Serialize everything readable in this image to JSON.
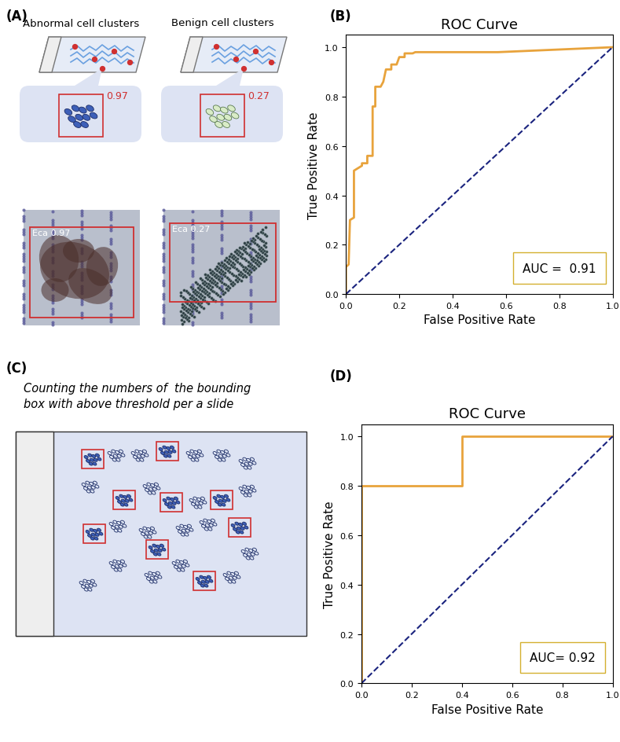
{
  "panel_labels": [
    "(A)",
    "(B)",
    "(C)",
    "(D)"
  ],
  "panel_A": {
    "left_title": "Abnormal cell clusters",
    "right_title": "Benign cell clusters",
    "left_score": 0.97,
    "right_score": 0.27,
    "photo_label": "Eca"
  },
  "panel_C": {
    "caption_lines": [
      "Counting the numbers of  the bounding",
      "box with above threshold per a slide"
    ]
  },
  "chart_data": [
    {
      "type": "line",
      "title": "ROC Curve",
      "x_label": "False Positive Rate",
      "y_label": "True Positive Rate",
      "series": [
        {
          "color": "#e8a33c",
          "line_style": "solid",
          "x": [
            0,
            0,
            0.01,
            0.015,
            0.03,
            0.03,
            0.06,
            0.06,
            0.08,
            0.08,
            0.1,
            0.1,
            0.11,
            0.11,
            0.13,
            0.14,
            0.15,
            0.17,
            0.17,
            0.19,
            0.2,
            0.22,
            0.22,
            0.25,
            0.26,
            0.57,
            1.0
          ],
          "values": [
            0,
            0.11,
            0.12,
            0.3,
            0.31,
            0.5,
            0.52,
            0.53,
            0.53,
            0.56,
            0.56,
            0.76,
            0.76,
            0.84,
            0.84,
            0.86,
            0.91,
            0.91,
            0.93,
            0.93,
            0.96,
            0.96,
            0.975,
            0.975,
            0.98,
            0.98,
            1.0
          ]
        },
        {
          "color": "#1a237e",
          "line_style": "dashed",
          "x": [
            0,
            1
          ],
          "values": [
            0,
            1
          ]
        }
      ],
      "xlim": [
        0,
        1
      ],
      "ylim": [
        0,
        1.05
      ],
      "xticks": [
        {
          "value": 0,
          "label": "0.0"
        },
        {
          "value": 0.2,
          "label": "0.2"
        },
        {
          "value": 0.4,
          "label": "0.4"
        },
        {
          "value": 0.6,
          "label": "0.6"
        },
        {
          "value": 0.8,
          "label": "0.8"
        },
        {
          "value": 1,
          "label": "1.0"
        }
      ],
      "yticks": [
        {
          "value": 0,
          "label": "0.0"
        },
        {
          "value": 0.2,
          "label": "0.2"
        },
        {
          "value": 0.4,
          "label": "0.4"
        },
        {
          "value": 0.6,
          "label": "0.6"
        },
        {
          "value": 0.8,
          "label": "0.8"
        },
        {
          "value": 1,
          "label": "1.0"
        }
      ],
      "annotations": [
        {
          "text": "AUC =  0.91"
        }
      ]
    },
    {
      "type": "line",
      "title": "ROC Curve",
      "x_label": "False Positive Rate",
      "y_label": "True Positive Rate",
      "series": [
        {
          "color": "#e8a33c",
          "line_style": "solid",
          "x": [
            0,
            0,
            0.4,
            0.4,
            1.0
          ],
          "values": [
            0,
            0.8,
            0.8,
            1.0,
            1.0
          ]
        },
        {
          "color": "#1a237e",
          "line_style": "dashed",
          "x": [
            0,
            1
          ],
          "values": [
            0,
            1
          ]
        }
      ],
      "xlim": [
        0,
        1
      ],
      "ylim": [
        0,
        1.05
      ],
      "xticks": [
        {
          "value": 0,
          "label": "0.0"
        },
        {
          "value": 0.2,
          "label": "0.2"
        },
        {
          "value": 0.4,
          "label": "0.4"
        },
        {
          "value": 0.6,
          "label": "0.6"
        },
        {
          "value": 0.8,
          "label": "0.8"
        },
        {
          "value": 1,
          "label": "1.0"
        }
      ],
      "yticks": [
        {
          "value": 0,
          "label": "0.0"
        },
        {
          "value": 0.2,
          "label": "0.2"
        },
        {
          "value": 0.4,
          "label": "0.4"
        },
        {
          "value": 0.6,
          "label": "0.6"
        },
        {
          "value": 0.8,
          "label": "0.8"
        },
        {
          "value": 1,
          "label": "1.0"
        }
      ],
      "annotations": [
        {
          "text": "AUC= 0.92"
        }
      ]
    }
  ]
}
